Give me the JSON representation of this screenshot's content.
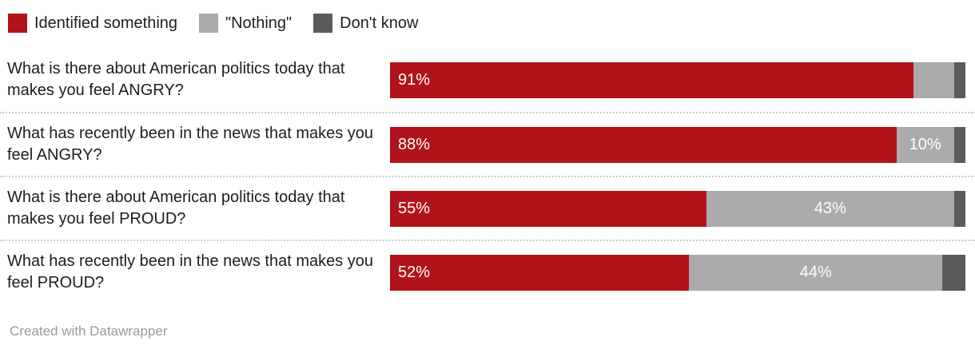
{
  "legend": {
    "items": [
      {
        "label": "Identified something",
        "color": "#b1131b"
      },
      {
        "label": "\"Nothing\"",
        "color": "#ababab"
      },
      {
        "label": "Don't know",
        "color": "#5b5b5b"
      }
    ]
  },
  "chart_data": {
    "type": "bar",
    "orientation": "horizontal",
    "stacked": true,
    "categories": [
      "What is there about American politics today that makes you feel ANGRY?",
      "What has recently been in the news that makes you feel ANGRY?",
      "What is there about American politics today that makes you feel PROUD?",
      "What has recently been in the news that makes you feel PROUD?"
    ],
    "series": [
      {
        "name": "Identified something",
        "color": "#b1131b",
        "values": [
          91,
          88,
          55,
          52
        ],
        "labels": [
          "91%",
          "88%",
          "55%",
          "52%"
        ]
      },
      {
        "name": "\"Nothing\"",
        "color": "#ababab",
        "values": [
          7,
          10,
          43,
          44
        ],
        "labels": [
          "",
          "10%",
          "43%",
          "44%"
        ]
      },
      {
        "name": "Don't know",
        "color": "#5b5b5b",
        "values": [
          2,
          2,
          2,
          4
        ],
        "labels": [
          "",
          "",
          "",
          ""
        ]
      }
    ],
    "xlim": [
      0,
      100
    ],
    "legend_position": "top",
    "grid": false,
    "value_label_color": "#ffffff"
  },
  "footer": {
    "credit": "Created with Datawrapper"
  },
  "colors": {
    "background": "#ffffff",
    "text": "#1d1d1d",
    "separator": "#cccccc",
    "footer_text": "#9a9a9a"
  }
}
